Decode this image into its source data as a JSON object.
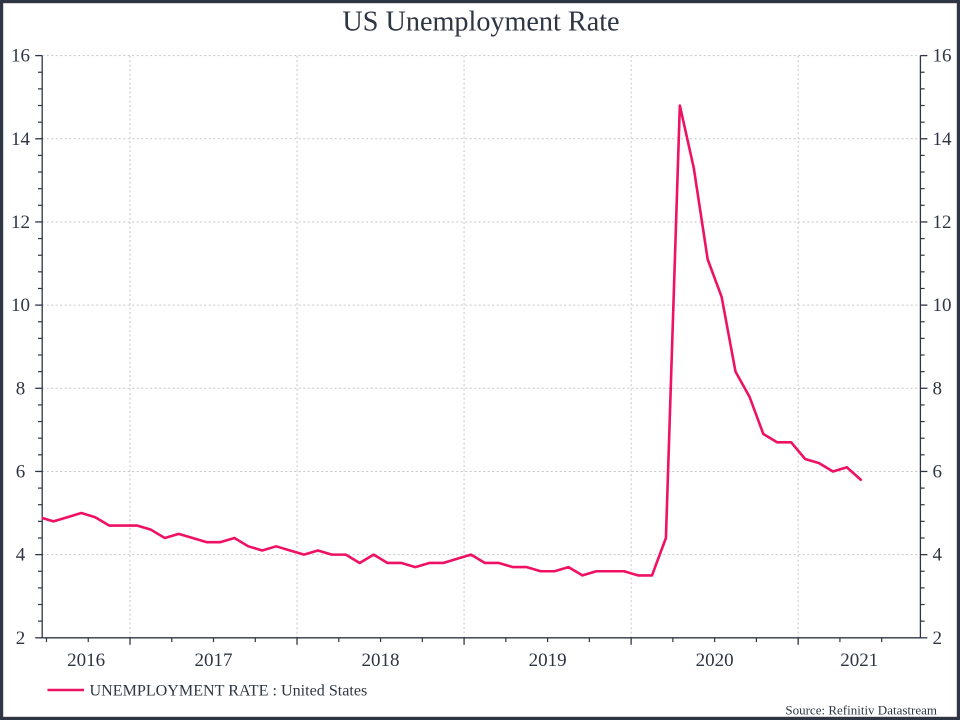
{
  "title": "US Unemployment Rate",
  "legend": {
    "label": "UNEMPLOYMENT RATE : United States"
  },
  "source_note": "Source: Refinitiv Datastream",
  "colors": {
    "line": "#ee1164",
    "axis": "#2e3543",
    "text": "#2e3543",
    "grid": "#c6c6c6",
    "background": "#ffffff",
    "border": "#2e3543"
  },
  "chart_data": {
    "type": "line",
    "title": "US Unemployment Rate",
    "grid": "dotted",
    "legend_position": "bottom-left",
    "source": "Source: Refinitiv Datastream",
    "series": [
      {
        "name": "UNEMPLOYMENT RATE : United States",
        "color": "#ee1164",
        "frequency": "monthly",
        "start_month": "2016-06",
        "end_month": "2021-05",
        "values": [
          4.9,
          4.8,
          4.9,
          5.0,
          4.9,
          4.7,
          4.7,
          4.7,
          4.6,
          4.4,
          4.5,
          4.4,
          4.3,
          4.3,
          4.4,
          4.2,
          4.1,
          4.2,
          4.1,
          4.0,
          4.1,
          4.0,
          4.0,
          3.8,
          4.0,
          3.8,
          3.8,
          3.7,
          3.8,
          3.8,
          3.9,
          4.0,
          3.8,
          3.8,
          3.7,
          3.7,
          3.6,
          3.6,
          3.7,
          3.5,
          3.6,
          3.6,
          3.6,
          3.5,
          3.5,
          4.4,
          14.8,
          13.3,
          11.1,
          10.2,
          8.4,
          7.8,
          6.9,
          6.7,
          6.7,
          6.3,
          6.2,
          6.0,
          6.1,
          5.8
        ]
      }
    ],
    "x_axis": {
      "year_labels": [
        "2016",
        "2017",
        "2018",
        "2019",
        "2020",
        "2021"
      ],
      "gridline_years": [
        2017,
        2018,
        2019,
        2020,
        2021
      ],
      "window_start": "2016-06-22",
      "window_end": "2021-09-24",
      "minor_tick_months": 3
    },
    "y_axis": {
      "min": 2,
      "max": 16,
      "major_ticks": [
        2,
        4,
        6,
        8,
        10,
        12,
        14,
        16
      ],
      "minor_tick_step": 0.4,
      "labels_both_sides": true
    }
  }
}
